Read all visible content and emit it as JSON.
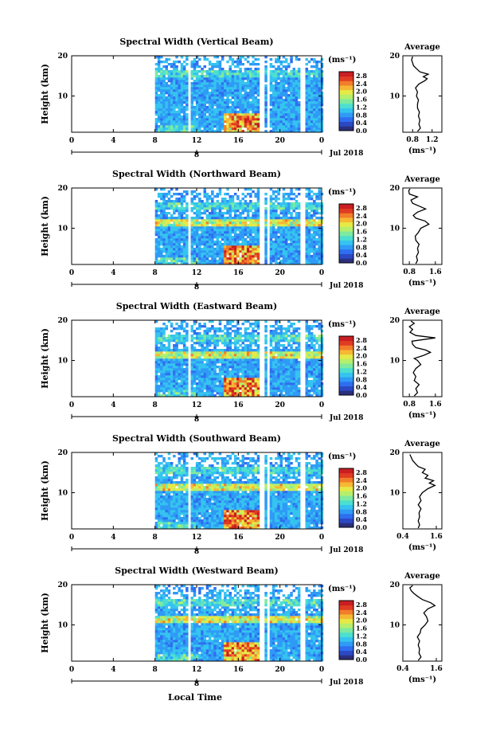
{
  "figure": {
    "date_label": "Jul 2018",
    "day_label": "8",
    "xlabel": "Local Time",
    "ylabel": "Height (km)",
    "colorbar_unit": "(ms⁻¹)",
    "avg_unit": "(ms⁻¹)",
    "avg_title": "Average",
    "palette": [
      "#2b2f7d",
      "#2c49c4",
      "#2f6ef0",
      "#2f9bf6",
      "#35c4ef",
      "#4ddfd0",
      "#7eeaa0",
      "#b5ef6c",
      "#e6ea47",
      "#f6b834",
      "#f27d2a",
      "#e03c23",
      "#c91e22"
    ]
  },
  "chart_data": [
    {
      "type": "heatmap",
      "title": "Spectral Width (Vertical Beam)",
      "x_ticks": [
        "0",
        "4",
        "8",
        "12",
        "16",
        "20",
        "0"
      ],
      "xlim": [
        0,
        24
      ],
      "y_ticks": [
        "10",
        "20"
      ],
      "ylim": [
        1,
        20
      ],
      "colorbar_ticks": [
        "0.0",
        "0.4",
        "0.8",
        "1.2",
        "1.6",
        "2.0",
        "2.4",
        "2.8"
      ],
      "colorbar_range": [
        0,
        3.0
      ],
      "data_gaps_hours": [
        [
          11.0,
          11.3
        ],
        [
          17.9,
          18.3
        ],
        [
          18.7,
          19.0
        ],
        [
          21.7,
          22.2
        ]
      ],
      "data_start_hour": 8,
      "average": {
        "x_ticks": [
          "0.8",
          "1.2"
        ],
        "xlim": [
          0.6,
          1.4
        ],
        "profile": [
          [
            1.2,
            0.9
          ],
          [
            2,
            0.96
          ],
          [
            3,
            0.93
          ],
          [
            4,
            0.95
          ],
          [
            5,
            0.92
          ],
          [
            6,
            0.94
          ],
          [
            7,
            0.9
          ],
          [
            8,
            0.9
          ],
          [
            9,
            0.92
          ],
          [
            10,
            0.88
          ],
          [
            11,
            0.9
          ],
          [
            12,
            0.86
          ],
          [
            13,
            0.93
          ],
          [
            13.8,
            1.05
          ],
          [
            14.3,
            1.1
          ],
          [
            14.8,
            1.02
          ],
          [
            15.4,
            1.12
          ],
          [
            16,
            0.95
          ],
          [
            16.8,
            0.88
          ],
          [
            17.5,
            0.82
          ],
          [
            18.2,
            0.8
          ],
          [
            19,
            0.78
          ],
          [
            19.8,
            0.8
          ]
        ]
      }
    },
    {
      "type": "heatmap",
      "title": "Spectral Width (Northward Beam)",
      "x_ticks": [
        "0",
        "4",
        "8",
        "12",
        "16",
        "20",
        "0"
      ],
      "xlim": [
        0,
        24
      ],
      "y_ticks": [
        "10",
        "20"
      ],
      "ylim": [
        1,
        20
      ],
      "colorbar_ticks": [
        "0.0",
        "0.4",
        "0.8",
        "1.2",
        "1.6",
        "2.0",
        "2.4",
        "2.8"
      ],
      "colorbar_range": [
        0,
        3.0
      ],
      "data_gaps_hours": [
        [
          11.0,
          11.3
        ],
        [
          17.9,
          18.3
        ],
        [
          18.7,
          19.0
        ],
        [
          21.7,
          22.2
        ]
      ],
      "data_start_hour": 8,
      "average": {
        "x_ticks": [
          "0.8",
          "1.6"
        ],
        "xlim": [
          0.6,
          1.8
        ],
        "profile": [
          [
            1.2,
            1.0
          ],
          [
            2,
            1.05
          ],
          [
            3,
            1.02
          ],
          [
            4,
            1.08
          ],
          [
            5,
            1.05
          ],
          [
            6,
            1.1
          ],
          [
            7,
            1.0
          ],
          [
            8,
            0.98
          ],
          [
            9,
            1.08
          ],
          [
            10,
            1.15
          ],
          [
            11,
            1.4
          ],
          [
            11.8,
            1.28
          ],
          [
            12.5,
            1.0
          ],
          [
            13.2,
            0.92
          ],
          [
            14,
            1.05
          ],
          [
            14.8,
            1.3
          ],
          [
            15.5,
            1.1
          ],
          [
            16.2,
            0.9
          ],
          [
            17,
            0.85
          ],
          [
            17.8,
            1.05
          ],
          [
            18.5,
            0.8
          ],
          [
            19.3,
            0.78
          ],
          [
            19.8,
            0.82
          ]
        ]
      }
    },
    {
      "type": "heatmap",
      "title": "Spectral Width (Eastward Beam)",
      "x_ticks": [
        "0",
        "4",
        "8",
        "12",
        "16",
        "20",
        "0"
      ],
      "xlim": [
        0,
        24
      ],
      "y_ticks": [
        "10",
        "20"
      ],
      "ylim": [
        1,
        20
      ],
      "colorbar_ticks": [
        "0.0",
        "0.4",
        "0.8",
        "1.2",
        "1.6",
        "2.0",
        "2.4",
        "2.8"
      ],
      "colorbar_range": [
        0,
        3.0
      ],
      "data_gaps_hours": [
        [
          11.0,
          11.3
        ],
        [
          17.9,
          18.3
        ],
        [
          18.7,
          19.0
        ],
        [
          21.7,
          22.2
        ]
      ],
      "data_start_hour": 8,
      "average": {
        "x_ticks": [
          "0.8",
          "1.6"
        ],
        "xlim": [
          0.6,
          1.8
        ],
        "profile": [
          [
            1.2,
            0.95
          ],
          [
            2,
            1.05
          ],
          [
            3,
            1.0
          ],
          [
            4,
            1.1
          ],
          [
            5,
            0.95
          ],
          [
            6,
            1.0
          ],
          [
            7,
            0.92
          ],
          [
            8,
            1.0
          ],
          [
            9,
            1.15
          ],
          [
            10,
            1.05
          ],
          [
            10.5,
            0.95
          ],
          [
            11.3,
            1.25
          ],
          [
            12,
            1.45
          ],
          [
            12.6,
            1.3
          ],
          [
            13.2,
            1.0
          ],
          [
            14,
            0.9
          ],
          [
            14.8,
            0.88
          ],
          [
            15.6,
            1.6
          ],
          [
            16.2,
            1.0
          ],
          [
            17,
            0.82
          ],
          [
            17.7,
            0.9
          ],
          [
            18.4,
            0.8
          ],
          [
            19.2,
            0.95
          ],
          [
            19.8,
            0.85
          ]
        ]
      }
    },
    {
      "type": "heatmap",
      "title": "Spectral Width (Southward Beam)",
      "x_ticks": [
        "0",
        "4",
        "8",
        "12",
        "16",
        "20",
        "0"
      ],
      "xlim": [
        0,
        24
      ],
      "y_ticks": [
        "10",
        "20"
      ],
      "ylim": [
        1,
        20
      ],
      "colorbar_ticks": [
        "0.0",
        "0.4",
        "0.8",
        "1.2",
        "1.6",
        "2.0",
        "2.4",
        "2.8"
      ],
      "colorbar_range": [
        0,
        3.0
      ],
      "data_gaps_hours": [
        [
          11.0,
          11.3
        ],
        [
          17.9,
          18.3
        ],
        [
          18.7,
          19.0
        ],
        [
          21.7,
          22.2
        ]
      ],
      "data_start_hour": 8,
      "average": {
        "x_ticks": [
          "0.4",
          "1.6"
        ],
        "xlim": [
          0.4,
          1.8
        ],
        "profile": [
          [
            1.2,
            0.95
          ],
          [
            2,
            1.0
          ],
          [
            3,
            0.95
          ],
          [
            4,
            1.0
          ],
          [
            5,
            0.98
          ],
          [
            6,
            1.05
          ],
          [
            7,
            0.95
          ],
          [
            8,
            1.05
          ],
          [
            9,
            1.0
          ],
          [
            10,
            1.1
          ],
          [
            11,
            1.3
          ],
          [
            11.8,
            1.55
          ],
          [
            12.4,
            1.35
          ],
          [
            13,
            1.5
          ],
          [
            13.6,
            1.2
          ],
          [
            14.3,
            1.3
          ],
          [
            15,
            1.1
          ],
          [
            15.8,
            1.2
          ],
          [
            16.5,
            0.95
          ],
          [
            17.2,
            0.85
          ],
          [
            18,
            0.75
          ],
          [
            18.8,
            0.7
          ],
          [
            19.5,
            0.65
          ]
        ]
      }
    },
    {
      "type": "heatmap",
      "title": "Spectral Width (Westward Beam)",
      "x_ticks": [
        "0",
        "4",
        "8",
        "12",
        "16",
        "20",
        "0"
      ],
      "xlim": [
        0,
        24
      ],
      "y_ticks": [
        "10",
        "20"
      ],
      "ylim": [
        1,
        20
      ],
      "colorbar_ticks": [
        "0.0",
        "0.4",
        "0.8",
        "1.2",
        "1.6",
        "2.0",
        "2.4",
        "2.8"
      ],
      "colorbar_range": [
        0,
        3.0
      ],
      "data_gaps_hours": [
        [
          11.0,
          11.3
        ],
        [
          17.9,
          18.3
        ],
        [
          18.7,
          19.0
        ],
        [
          21.7,
          22.2
        ]
      ],
      "data_start_hour": 8,
      "average": {
        "x_ticks": [
          "0.4",
          "1.6"
        ],
        "xlim": [
          0.4,
          1.8
        ],
        "profile": [
          [
            1.2,
            0.95
          ],
          [
            2,
            1.05
          ],
          [
            3,
            0.98
          ],
          [
            4,
            1.0
          ],
          [
            5,
            0.95
          ],
          [
            6,
            1.0
          ],
          [
            7,
            0.92
          ],
          [
            8,
            1.02
          ],
          [
            9,
            1.05
          ],
          [
            10,
            1.2
          ],
          [
            11,
            1.3
          ],
          [
            12,
            1.25
          ],
          [
            13,
            1.15
          ],
          [
            14,
            1.3
          ],
          [
            14.8,
            1.55
          ],
          [
            15.5,
            1.4
          ],
          [
            16.3,
            1.1
          ],
          [
            17,
            0.95
          ],
          [
            17.8,
            0.8
          ],
          [
            18.5,
            0.7
          ],
          [
            19.2,
            0.65
          ],
          [
            19.8,
            0.75
          ]
        ]
      }
    }
  ]
}
